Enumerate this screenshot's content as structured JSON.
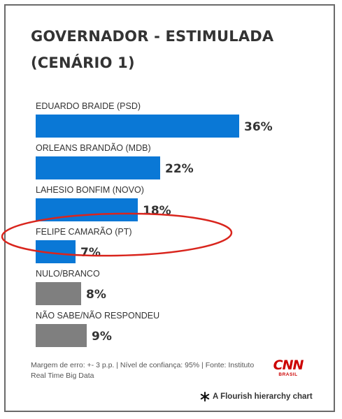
{
  "chart_data": {
    "type": "bar",
    "orientation": "horizontal",
    "title": "GOVERNADOR - ESTIMULADA (CENÁRIO 1)",
    "unit": "%",
    "xlim": [
      0,
      36
    ],
    "grid": false,
    "categories": [
      "EDUARDO BRAIDE (PSD)",
      "ORLEANS BRANDÃO (MDB)",
      "LAHESIO BONFIM (NOVO)",
      "FELIPE CAMARÃO (PT)",
      "NULO/BRANCO",
      "NÃO SABE/NÃO RESPONDEU"
    ],
    "values": [
      36,
      22,
      18,
      7,
      8,
      9
    ],
    "value_labels": [
      "36%",
      "22%",
      "18%",
      "7%",
      "8%",
      "9%"
    ],
    "bar_colors": [
      "#0a78d6",
      "#0a78d6",
      "#0a78d6",
      "#0a78d6",
      "#7f7f7f",
      "#7f7f7f"
    ],
    "highlighted_category": "FELIPE CAMARÃO (PT)"
  },
  "colors": {
    "candidate_bar": "#0a78d6",
    "other_bar": "#7f7f7f",
    "highlight_ellipse": "#d9251d",
    "brand": "#cc0000"
  },
  "footnote": "Margem de erro: +- 3 p.p. | Nível de confiança: 95% | Fonte: Instituto Real Time Big Data",
  "logo": {
    "main": "CNN",
    "sub": "BRASIL"
  },
  "credit": {
    "icon": "flourish-asterisk-icon",
    "text": "A Flourish hierarchy chart"
  }
}
